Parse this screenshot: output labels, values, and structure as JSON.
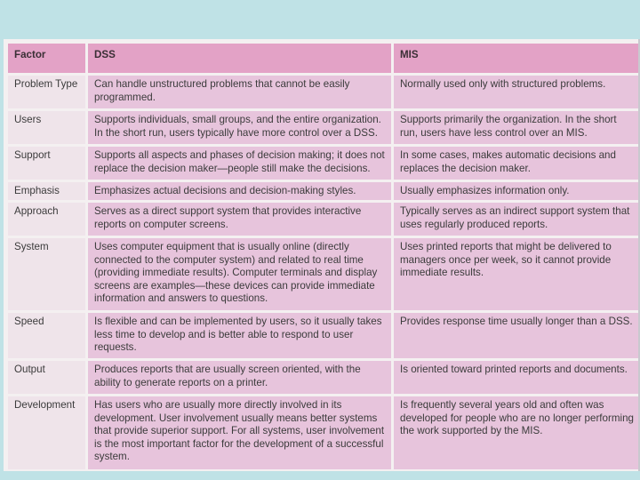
{
  "table": {
    "headers": [
      "Factor",
      "DSS",
      "MIS"
    ],
    "rows": [
      {
        "factor": "Problem Type",
        "dss": "Can handle unstructured problems that cannot be easily programmed.",
        "mis": "Normally used only with structured problems."
      },
      {
        "factor": "Users",
        "dss": "Supports individuals, small groups, and the entire organization. In the short run, users typically have more control over a DSS.",
        "mis": "Supports primarily the organization. In the short run, users have less control over an MIS."
      },
      {
        "factor": "Support",
        "dss": "Supports all aspects and phases of decision making; it does not replace the decision maker—people still make the decisions.",
        "mis": "In some cases, makes automatic decisions and replaces the decision maker."
      },
      {
        "factor": "Emphasis",
        "dss": "Emphasizes actual decisions and decision-making styles.",
        "mis": "Usually emphasizes information only."
      },
      {
        "factor": "Approach",
        "dss": "Serves as a direct support system that provides interactive reports on computer screens.",
        "mis": "Typically serves as an indirect support system that uses regularly produced reports."
      },
      {
        "factor": "System",
        "dss": "Uses computer equipment that is usually online (directly connected to the computer system) and related to real time (providing immediate results). Computer terminals and display screens are examples—these devices can provide immediate information and answers to questions.",
        "mis": "Uses printed reports that might be delivered to managers once per week, so it cannot provide immediate results."
      },
      {
        "factor": "Speed",
        "dss": "Is flexible and can be implemented by users, so it usually takes less time to develop and is better able to respond to user requests.",
        "mis": "Provides response time usually longer than a DSS."
      },
      {
        "factor": "Output",
        "dss": "Produces reports that are usually screen oriented, with the ability to generate reports on a printer.",
        "mis": "Is oriented toward printed reports and documents."
      },
      {
        "factor": "Development",
        "dss": "Has users who are usually more directly involved in its development. User involvement usually means better systems that provide superior support. For all systems, user involvement is the most important factor for the development of a successful system.",
        "mis": "Is frequently several years old and often was developed for people who are no longer performing the work supported by the MIS."
      }
    ]
  }
}
